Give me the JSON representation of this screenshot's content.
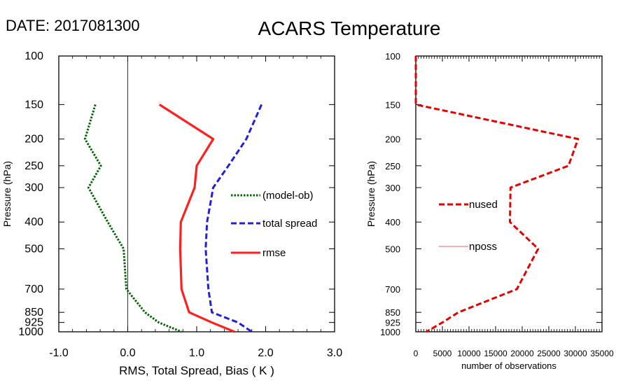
{
  "header": {
    "date_label": "DATE: 2017081300",
    "title": "ACARS Temperature"
  },
  "chart_data": [
    {
      "type": "line",
      "title": "ACARS Temperature",
      "xlabel": "RMS, Total Spread, Bias ( K )",
      "ylabel": "Pressure (hPa)",
      "xlim": [
        -1.0,
        3.0
      ],
      "ylim": [
        1000,
        100
      ],
      "y_scale": "log",
      "y_reversed": true,
      "xticks": [
        "-1.0",
        "0.0",
        "1.0",
        "2.0",
        "3.0"
      ],
      "yticks": [
        "100",
        "150",
        "200",
        "250",
        "300",
        "400",
        "500",
        "700",
        "850",
        "925",
        "1000"
      ],
      "zero_line": true,
      "legend_position": "right",
      "series": [
        {
          "name": "(model-ob)",
          "color": "#006400",
          "dash": "dotted",
          "points": [
            [
              -0.47,
              150
            ],
            [
              -0.62,
              200
            ],
            [
              -0.39,
              250
            ],
            [
              -0.57,
              300
            ],
            [
              -0.29,
              400
            ],
            [
              -0.06,
              500
            ],
            [
              -0.02,
              700
            ],
            [
              0.25,
              850
            ],
            [
              0.45,
              925
            ],
            [
              0.78,
              1000
            ]
          ]
        },
        {
          "name": "total spread",
          "color": "#1f1fdd",
          "dash": "dashed",
          "points": [
            [
              1.94,
              150
            ],
            [
              1.72,
              200
            ],
            [
              1.46,
              250
            ],
            [
              1.24,
              300
            ],
            [
              1.15,
              400
            ],
            [
              1.13,
              500
            ],
            [
              1.17,
              700
            ],
            [
              1.22,
              850
            ],
            [
              1.6,
              925
            ],
            [
              1.8,
              1000
            ]
          ]
        },
        {
          "name": "rmse",
          "color": "#ff1f1f",
          "dash": "solid",
          "points": [
            [
              0.46,
              150
            ],
            [
              1.24,
              200
            ],
            [
              1.0,
              250
            ],
            [
              0.97,
              300
            ],
            [
              0.77,
              400
            ],
            [
              0.76,
              500
            ],
            [
              0.78,
              700
            ],
            [
              0.89,
              850
            ],
            [
              1.22,
              925
            ],
            [
              1.55,
              1000
            ]
          ]
        }
      ]
    },
    {
      "type": "line",
      "xlabel": "number of observations",
      "ylabel": "Pressure (hPa)",
      "xlim": [
        0,
        35000
      ],
      "ylim": [
        1000,
        100
      ],
      "y_scale": "log",
      "y_reversed": true,
      "xticks": [
        "0",
        "5000",
        "10000",
        "15000",
        "20000",
        "25000",
        "30000",
        "35000"
      ],
      "yticks": [
        "100",
        "150",
        "200",
        "250",
        "300",
        "400",
        "500",
        "700",
        "850",
        "925",
        "1000"
      ],
      "legend_position": "left",
      "series": [
        {
          "name": "nused",
          "color": "#e60000",
          "dash": "dashed",
          "points": [
            [
              0,
              100
            ],
            [
              0,
              150
            ],
            [
              30500,
              200
            ],
            [
              28700,
              250
            ],
            [
              17800,
              300
            ],
            [
              17700,
              400
            ],
            [
              23000,
              500
            ],
            [
              19000,
              700
            ],
            [
              8000,
              850
            ],
            [
              5000,
              925
            ],
            [
              2000,
              1000
            ]
          ]
        },
        {
          "name": "nposs",
          "color": "#f08080",
          "dash": "solid",
          "points": []
        }
      ]
    }
  ]
}
